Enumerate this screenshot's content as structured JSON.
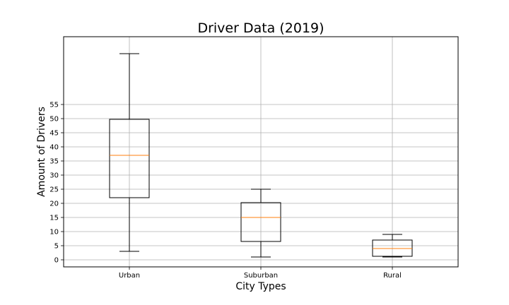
{
  "chart_data": {
    "type": "box",
    "title": "Driver Data (2019)",
    "xlabel": "City Types",
    "ylabel": "Amount of Drivers",
    "ylim": [
      -2.5,
      79
    ],
    "yticks": [
      0,
      5,
      10,
      15,
      20,
      25,
      30,
      35,
      40,
      45,
      50,
      55
    ],
    "grid": true,
    "categories": [
      "Urban",
      "Suburban",
      "Rural"
    ],
    "boxes": [
      {
        "name": "Urban",
        "whisker_low": 3,
        "q1": 22,
        "median": 37,
        "q3": 49.75,
        "whisker_high": 73
      },
      {
        "name": "Suburban",
        "whisker_low": 1,
        "q1": 6.5,
        "median": 15,
        "q3": 20.25,
        "whisker_high": 25
      },
      {
        "name": "Rural",
        "whisker_low": 1,
        "q1": 1.25,
        "median": 4,
        "q3": 7,
        "whisker_high": 9
      }
    ],
    "colors": {
      "box": "#000000",
      "median": "#ff7f0e",
      "grid": "#b0b0b0"
    }
  }
}
